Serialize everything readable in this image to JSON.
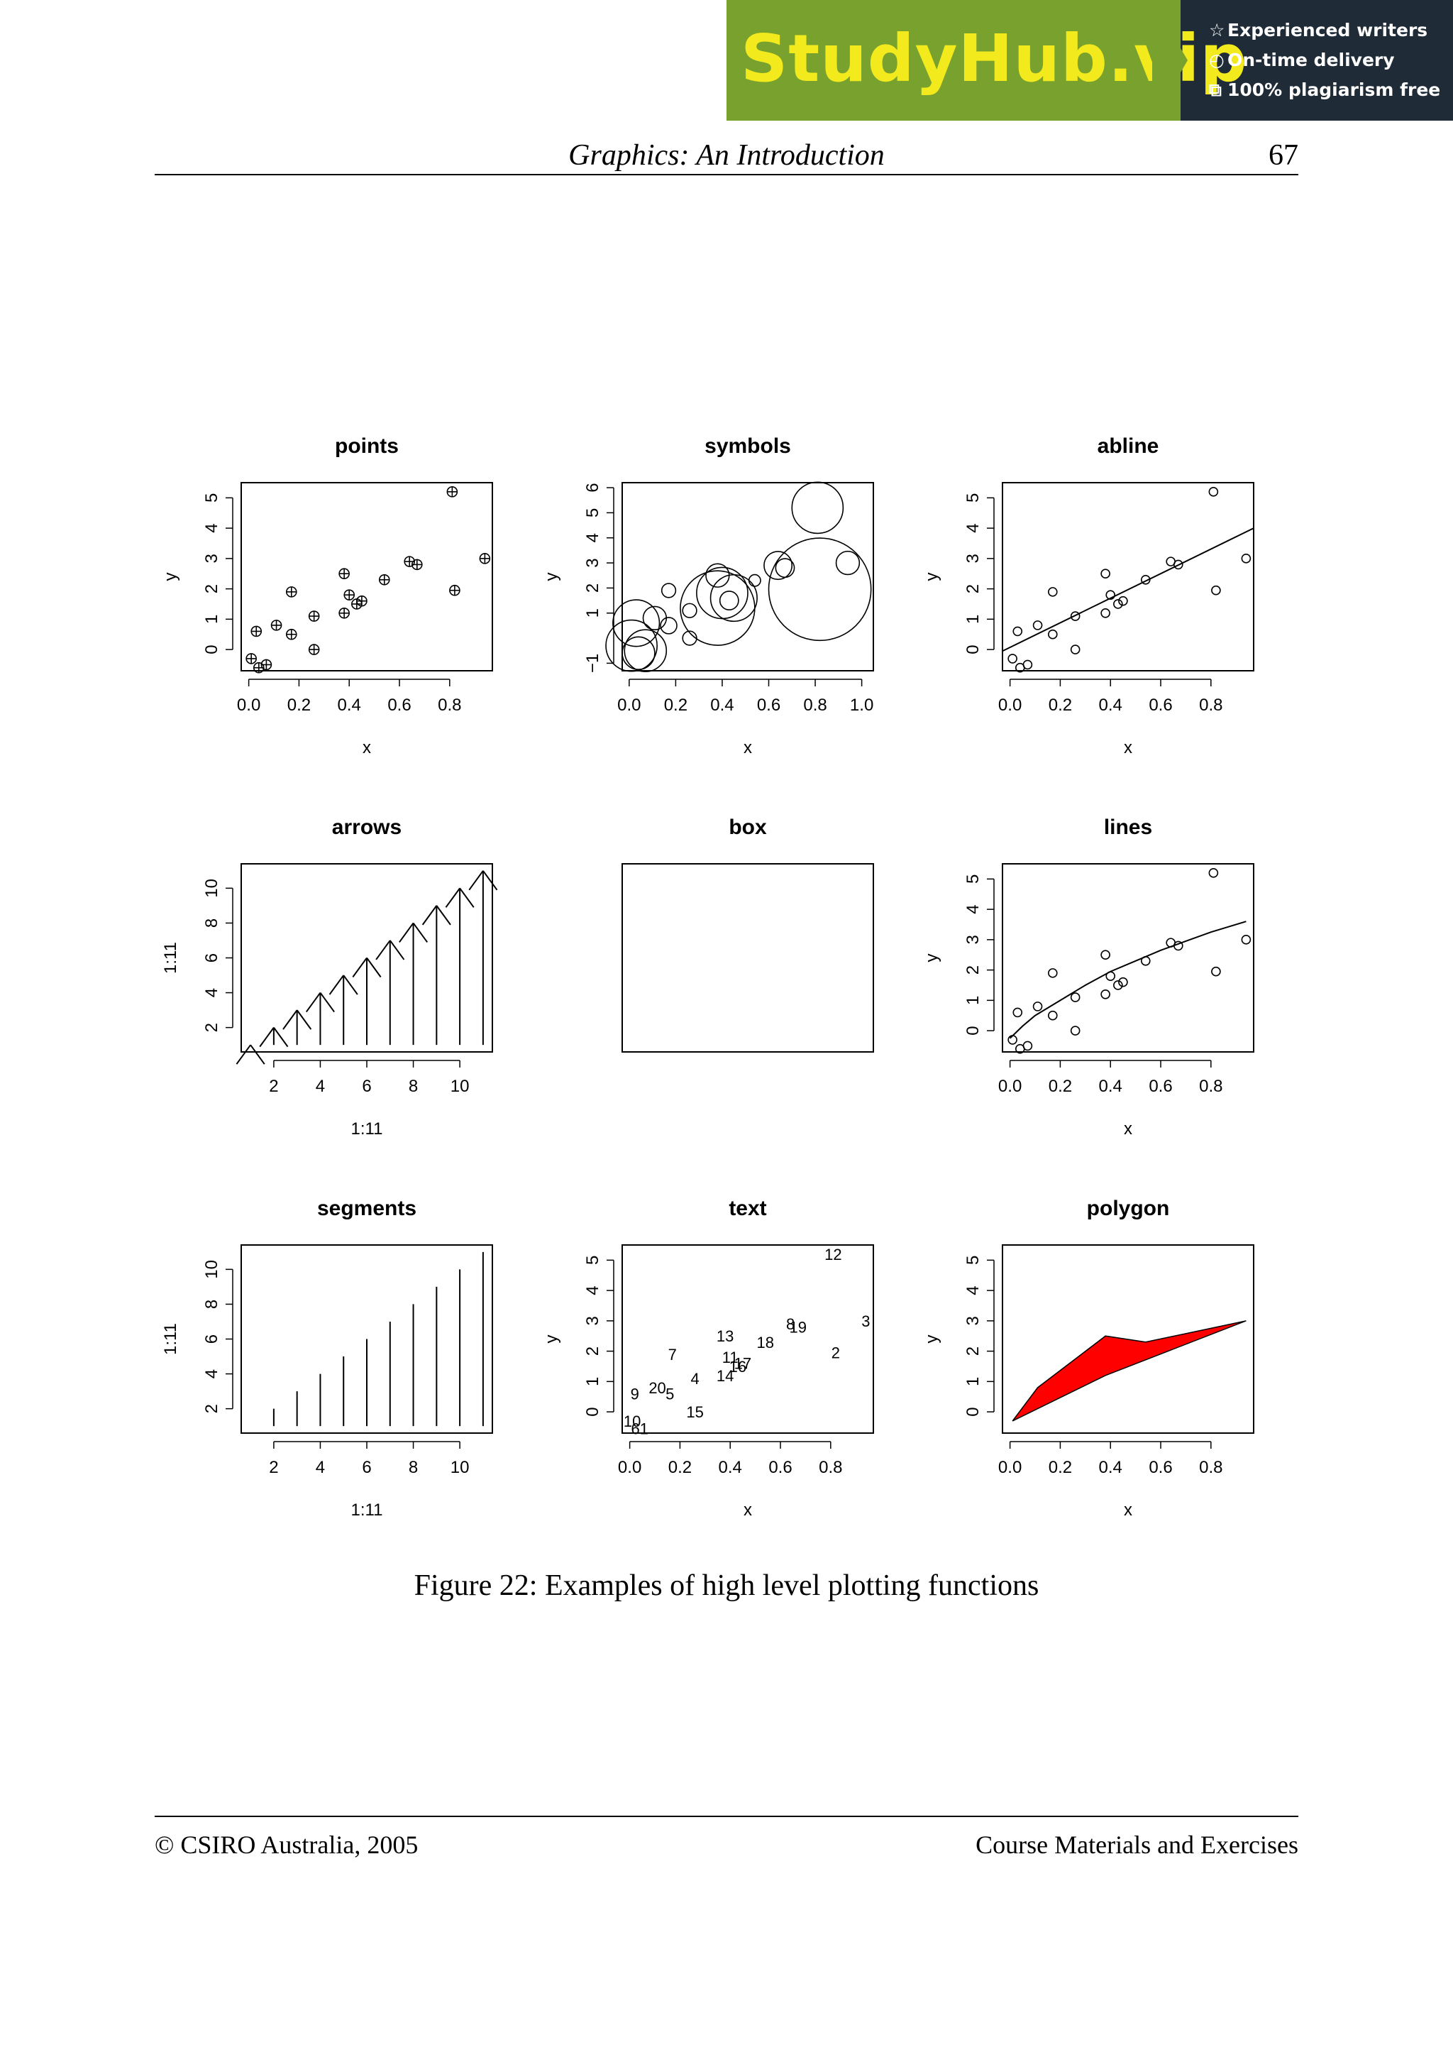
{
  "banner": {
    "brand": "StudyHub.vip",
    "features": [
      {
        "icon": "star-icon",
        "glyph": "☆",
        "label": "Experienced writers"
      },
      {
        "icon": "clock-icon",
        "glyph": "◴",
        "label": "On-time delivery"
      },
      {
        "icon": "copy-icon",
        "glyph": "⧉",
        "label": "100% plagiarism free"
      }
    ]
  },
  "header": {
    "title": "Graphics: An Introduction",
    "page_number": "67"
  },
  "caption": "Figure 22: Examples of high level plotting functions",
  "footer": {
    "copyright": "© CSIRO Australia, 2005",
    "right": "Course Materials and Exercises"
  },
  "chart_data": [
    {
      "type": "scatter",
      "title": "points",
      "xlabel": "x",
      "ylabel": "y",
      "xlim": [
        -0.03,
        0.97
      ],
      "ylim": [
        -0.7,
        5.5
      ],
      "xticks": [
        "0.0",
        "0.2",
        "0.4",
        "0.6",
        "0.8"
      ],
      "yticks": [
        "0",
        "1",
        "2",
        "3",
        "4",
        "5"
      ],
      "marker": "circle-plus",
      "points": [
        [
          0.01,
          -0.3
        ],
        [
          0.03,
          0.6
        ],
        [
          0.04,
          -0.6
        ],
        [
          0.07,
          -0.5
        ],
        [
          0.11,
          0.8
        ],
        [
          0.17,
          1.9
        ],
        [
          0.17,
          0.5
        ],
        [
          0.26,
          1.1
        ],
        [
          0.26,
          0.0
        ],
        [
          0.38,
          2.5
        ],
        [
          0.38,
          1.2
        ],
        [
          0.4,
          1.8
        ],
        [
          0.43,
          1.5
        ],
        [
          0.45,
          1.6
        ],
        [
          0.54,
          2.3
        ],
        [
          0.64,
          2.9
        ],
        [
          0.67,
          2.8
        ],
        [
          0.81,
          5.2
        ],
        [
          0.82,
          1.95
        ],
        [
          0.94,
          3.0
        ]
      ]
    },
    {
      "type": "scatter",
      "title": "symbols",
      "xlabel": "x",
      "ylabel": "y",
      "xlim": [
        -0.03,
        1.05
      ],
      "ylim": [
        -1.3,
        6.2
      ],
      "xticks": [
        "0.0",
        "0.2",
        "0.4",
        "0.6",
        "0.8",
        "1.0"
      ],
      "yticks": [
        "−1",
        "1",
        "2",
        "3",
        "4",
        "5",
        "6"
      ],
      "marker": "sized-circle",
      "points": [
        [
          0.01,
          -0.3,
          0.22
        ],
        [
          0.03,
          0.6,
          0.2
        ],
        [
          0.04,
          -0.6,
          0.14
        ],
        [
          0.07,
          -0.5,
          0.18
        ],
        [
          0.11,
          0.8,
          0.1
        ],
        [
          0.17,
          1.9,
          0.06
        ],
        [
          0.17,
          0.5,
          0.07
        ],
        [
          0.26,
          1.1,
          0.06
        ],
        [
          0.26,
          0.0,
          0.06
        ],
        [
          0.38,
          2.5,
          0.1
        ],
        [
          0.38,
          1.2,
          0.32
        ],
        [
          0.4,
          1.8,
          0.22
        ],
        [
          0.43,
          1.5,
          0.08
        ],
        [
          0.45,
          1.6,
          0.2
        ],
        [
          0.54,
          2.3,
          0.05
        ],
        [
          0.64,
          2.9,
          0.12
        ],
        [
          0.67,
          2.8,
          0.08
        ],
        [
          0.81,
          5.2,
          0.22
        ],
        [
          0.82,
          1.95,
          0.44
        ],
        [
          0.94,
          3.0,
          0.1
        ]
      ]
    },
    {
      "type": "scatter",
      "title": "abline",
      "xlabel": "x",
      "ylabel": "y",
      "xlim": [
        -0.03,
        0.97
      ],
      "ylim": [
        -0.7,
        5.5
      ],
      "xticks": [
        "0.0",
        "0.2",
        "0.4",
        "0.6",
        "0.8"
      ],
      "yticks": [
        "0",
        "1",
        "2",
        "3",
        "4",
        "5"
      ],
      "marker": "circle",
      "points": [
        [
          0.01,
          -0.3
        ],
        [
          0.03,
          0.6
        ],
        [
          0.04,
          -0.6
        ],
        [
          0.07,
          -0.5
        ],
        [
          0.11,
          0.8
        ],
        [
          0.17,
          1.9
        ],
        [
          0.17,
          0.5
        ],
        [
          0.26,
          1.1
        ],
        [
          0.26,
          0.0
        ],
        [
          0.38,
          2.5
        ],
        [
          0.38,
          1.2
        ],
        [
          0.4,
          1.8
        ],
        [
          0.43,
          1.5
        ],
        [
          0.45,
          1.6
        ],
        [
          0.54,
          2.3
        ],
        [
          0.64,
          2.9
        ],
        [
          0.67,
          2.8
        ],
        [
          0.81,
          5.2
        ],
        [
          0.82,
          1.95
        ],
        [
          0.94,
          3.0
        ]
      ],
      "line": [
        [
          -0.03,
          -0.05
        ],
        [
          0.97,
          4.0
        ]
      ]
    },
    {
      "type": "line",
      "title": "arrows",
      "xlabel": "1:11",
      "ylabel": "1:11",
      "xlim": [
        0.6,
        11.4
      ],
      "ylim": [
        0.6,
        11.4
      ],
      "xticks": [
        "2",
        "4",
        "6",
        "8",
        "10"
      ],
      "yticks": [
        "2",
        "4",
        "6",
        "8",
        "10"
      ],
      "values": [
        1,
        2,
        3,
        4,
        5,
        6,
        7,
        8,
        9,
        10,
        11
      ],
      "arrows": true
    },
    {
      "type": "box",
      "title": "box"
    },
    {
      "type": "scatter",
      "title": "lines",
      "xlabel": "x",
      "ylabel": "y",
      "xlim": [
        -0.03,
        0.97
      ],
      "ylim": [
        -0.7,
        5.5
      ],
      "xticks": [
        "0.0",
        "0.2",
        "0.4",
        "0.6",
        "0.8"
      ],
      "yticks": [
        "0",
        "1",
        "2",
        "3",
        "4",
        "5"
      ],
      "marker": "circle",
      "points": [
        [
          0.01,
          -0.3
        ],
        [
          0.03,
          0.6
        ],
        [
          0.04,
          -0.6
        ],
        [
          0.07,
          -0.5
        ],
        [
          0.11,
          0.8
        ],
        [
          0.17,
          1.9
        ],
        [
          0.17,
          0.5
        ],
        [
          0.26,
          1.1
        ],
        [
          0.26,
          0.0
        ],
        [
          0.38,
          2.5
        ],
        [
          0.38,
          1.2
        ],
        [
          0.4,
          1.8
        ],
        [
          0.43,
          1.5
        ],
        [
          0.45,
          1.6
        ],
        [
          0.54,
          2.3
        ],
        [
          0.64,
          2.9
        ],
        [
          0.67,
          2.8
        ],
        [
          0.81,
          5.2
        ],
        [
          0.82,
          1.95
        ],
        [
          0.94,
          3.0
        ]
      ],
      "line": [
        [
          0.0,
          -0.25
        ],
        [
          0.05,
          0.15
        ],
        [
          0.1,
          0.5
        ],
        [
          0.2,
          1.0
        ],
        [
          0.3,
          1.5
        ],
        [
          0.4,
          1.95
        ],
        [
          0.5,
          2.3
        ],
        [
          0.6,
          2.65
        ],
        [
          0.7,
          2.95
        ],
        [
          0.8,
          3.25
        ],
        [
          0.94,
          3.6
        ]
      ]
    },
    {
      "type": "line",
      "title": "segments",
      "xlabel": "1:11",
      "ylabel": "1:11",
      "xlim": [
        0.6,
        11.4
      ],
      "ylim": [
        0.6,
        11.4
      ],
      "xticks": [
        "2",
        "4",
        "6",
        "8",
        "10"
      ],
      "yticks": [
        "2",
        "4",
        "6",
        "8",
        "10"
      ],
      "values": [
        1,
        2,
        3,
        4,
        5,
        6,
        7,
        8,
        9,
        10,
        11
      ],
      "segments": true
    },
    {
      "type": "scatter",
      "title": "text",
      "xlabel": "x",
      "ylabel": "y",
      "xlim": [
        -0.03,
        0.97
      ],
      "ylim": [
        -0.7,
        5.5
      ],
      "xticks": [
        "0.0",
        "0.2",
        "0.4",
        "0.6",
        "0.8"
      ],
      "yticks": [
        "0",
        "1",
        "2",
        "3",
        "4",
        "5"
      ],
      "marker": "text",
      "points": [
        [
          0.02,
          0.6,
          "9"
        ],
        [
          0.01,
          -0.3,
          "10"
        ],
        [
          0.04,
          -0.55,
          "61"
        ],
        [
          0.11,
          0.8,
          "20"
        ],
        [
          0.16,
          0.6,
          "5"
        ],
        [
          0.17,
          1.9,
          "7"
        ],
        [
          0.26,
          1.1,
          "4"
        ],
        [
          0.26,
          0.0,
          "15"
        ],
        [
          0.38,
          2.5,
          "13"
        ],
        [
          0.38,
          1.2,
          "14"
        ],
        [
          0.4,
          1.8,
          "11"
        ],
        [
          0.43,
          1.5,
          "16"
        ],
        [
          0.45,
          1.6,
          "17"
        ],
        [
          0.54,
          2.3,
          "18"
        ],
        [
          0.64,
          2.9,
          "8"
        ],
        [
          0.67,
          2.8,
          "19"
        ],
        [
          0.81,
          5.2,
          "12"
        ],
        [
          0.82,
          1.95,
          "2"
        ],
        [
          0.94,
          3.0,
          "3"
        ]
      ]
    },
    {
      "type": "area",
      "title": "polygon",
      "xlabel": "x",
      "ylabel": "y",
      "xlim": [
        -0.03,
        0.97
      ],
      "ylim": [
        -0.7,
        5.5
      ],
      "xticks": [
        "0.0",
        "0.2",
        "0.4",
        "0.6",
        "0.8"
      ],
      "yticks": [
        "0",
        "1",
        "2",
        "3",
        "4",
        "5"
      ],
      "fill": "#ff0000",
      "polygon": [
        [
          0.01,
          -0.3
        ],
        [
          0.11,
          0.8
        ],
        [
          0.38,
          2.5
        ],
        [
          0.54,
          2.3
        ],
        [
          0.94,
          3.0
        ],
        [
          0.38,
          1.2
        ],
        [
          0.01,
          -0.3
        ]
      ]
    }
  ]
}
